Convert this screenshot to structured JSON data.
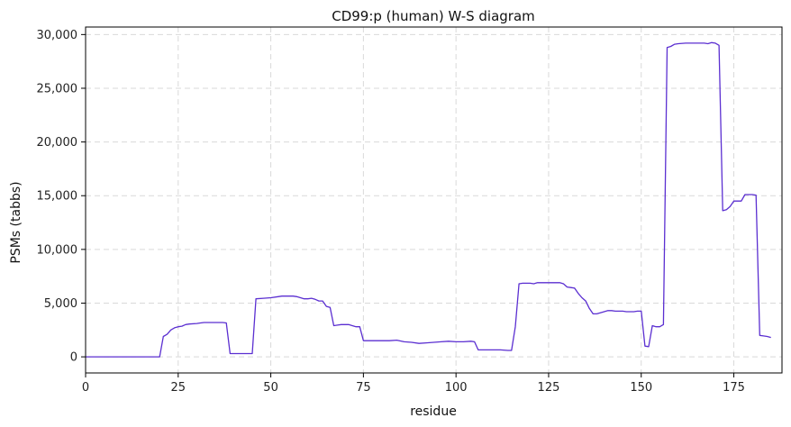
{
  "chart_data": {
    "type": "line",
    "title": "CD99:p (human) W-S diagram",
    "xlabel": "residue",
    "ylabel": "PSMs (tabbs)",
    "xlim": [
      0,
      188
    ],
    "ylim": [
      -1500,
      30700
    ],
    "xticks": [
      0,
      25,
      50,
      75,
      100,
      125,
      150,
      175
    ],
    "yticks": [
      0,
      5000,
      10000,
      15000,
      20000,
      25000,
      30000
    ],
    "xtick_labels": [
      "0",
      "25",
      "50",
      "75",
      "100",
      "125",
      "150",
      "175"
    ],
    "ytick_labels": [
      "0",
      "5,000",
      "10,000",
      "15,000",
      "20,000",
      "25,000",
      "30,000"
    ],
    "grid": true,
    "line_color": "#5b2fd1",
    "series": [
      {
        "x": [
          0,
          5,
          10,
          15,
          20,
          21,
          22,
          23,
          24,
          25,
          26,
          27,
          28,
          30,
          31,
          32,
          33,
          34,
          35,
          36,
          37,
          38,
          39,
          40,
          42,
          44,
          45,
          46,
          48,
          50,
          52,
          53,
          54,
          56,
          57,
          58,
          59,
          60,
          61,
          62,
          63,
          64,
          65,
          66,
          67,
          68,
          69,
          70,
          71,
          72,
          73,
          74,
          75,
          76,
          78,
          80,
          82,
          84,
          86,
          88,
          90,
          92,
          94,
          96,
          98,
          100,
          102,
          104,
          105,
          106,
          108,
          110,
          112,
          114,
          115,
          116,
          117,
          118,
          120,
          121,
          122,
          124,
          126,
          127,
          128,
          129,
          130,
          131,
          132,
          133,
          134,
          135,
          136,
          137,
          138,
          140,
          141,
          142,
          143,
          144,
          145,
          146,
          147,
          148,
          149,
          150,
          151,
          152,
          153,
          154,
          155,
          156,
          157,
          158,
          159,
          160,
          162,
          164,
          166,
          167,
          168,
          169,
          170,
          171,
          172,
          173,
          174,
          175,
          176,
          177,
          178,
          179,
          180,
          181,
          182,
          183,
          184,
          185
        ],
        "y": [
          0,
          0,
          0,
          0,
          0,
          1900,
          2100,
          2500,
          2700,
          2800,
          2850,
          3000,
          3050,
          3100,
          3150,
          3200,
          3200,
          3200,
          3200,
          3200,
          3200,
          3150,
          300,
          300,
          300,
          300,
          300,
          5400,
          5450,
          5500,
          5600,
          5650,
          5650,
          5650,
          5600,
          5500,
          5400,
          5400,
          5450,
          5350,
          5200,
          5200,
          4700,
          4600,
          2900,
          2950,
          3000,
          3000,
          3000,
          2900,
          2800,
          2800,
          1500,
          1500,
          1500,
          1500,
          1500,
          1550,
          1400,
          1350,
          1250,
          1300,
          1350,
          1400,
          1450,
          1400,
          1400,
          1450,
          1400,
          650,
          650,
          650,
          650,
          600,
          600,
          2800,
          6800,
          6850,
          6850,
          6800,
          6900,
          6900,
          6900,
          6900,
          6900,
          6800,
          6500,
          6450,
          6400,
          5900,
          5500,
          5200,
          4500,
          4000,
          4000,
          4200,
          4300,
          4300,
          4250,
          4250,
          4250,
          4200,
          4200,
          4200,
          4250,
          4250,
          1000,
          950,
          2900,
          2800,
          2800,
          3000,
          28800,
          28900,
          29100,
          29150,
          29200,
          29200,
          29200,
          29200,
          29150,
          29250,
          29200,
          29000,
          13600,
          13700,
          14000,
          14500,
          14500,
          14500,
          15100,
          15100,
          15100,
          15050,
          2000,
          1950,
          1900,
          1800
        ]
      }
    ]
  }
}
